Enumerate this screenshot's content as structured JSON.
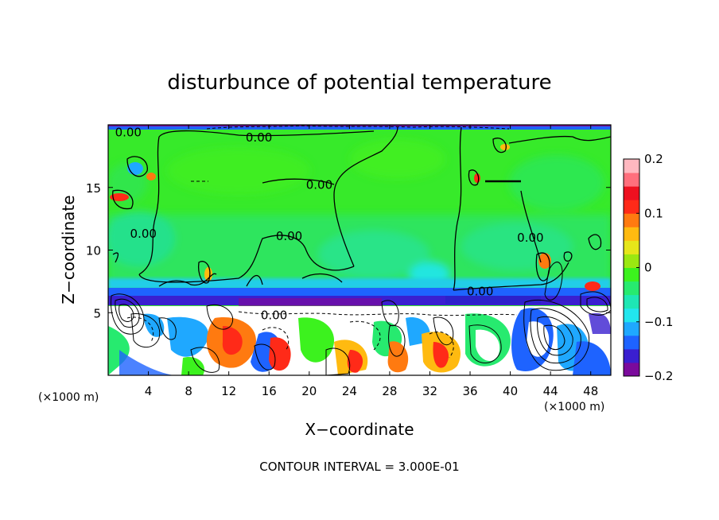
{
  "chart_data": {
    "type": "heatmap",
    "title": "disturbunce of potential temperature",
    "xlabel": "X−coordinate",
    "ylabel": "Z−coordinate",
    "x_unit": "(×1000 m)",
    "x_unit_right": "(×1000 m)",
    "xlim": [
      0,
      50
    ],
    "ylim": [
      0,
      20
    ],
    "x_ticks": [
      4,
      8,
      12,
      16,
      20,
      24,
      28,
      32,
      36,
      40,
      44,
      48
    ],
    "x_tick_labels": [
      "4",
      "8",
      "12",
      "16",
      "20",
      "24",
      "28",
      "32",
      "36",
      "40",
      "44",
      "48"
    ],
    "y_ticks": [
      5,
      10,
      15
    ],
    "y_tick_labels": [
      "5",
      "10",
      "15"
    ],
    "colorbar": {
      "min": -0.2,
      "max": 0.2,
      "tick_values": [
        0.2,
        0.1,
        0,
        -0.1,
        -0.2
      ],
      "tick_labels": [
        "0.2",
        "0.1",
        "0",
        "−0.1",
        "−0.2"
      ],
      "colors": [
        "#7b0a9c",
        "#3a1fd0",
        "#1e63ff",
        "#1fa8ff",
        "#22e6ee",
        "#1ee7b4",
        "#27ea6f",
        "#3cf21e",
        "#9be811",
        "#e6e61a",
        "#ffba10",
        "#ff7a10",
        "#ff2a18",
        "#ee1020",
        "#ff6f7d",
        "#ffb8c0"
      ]
    },
    "contour_labels": [
      {
        "text": "0.00",
        "x": 2.0,
        "z": 19.4
      },
      {
        "text": "0.00",
        "x": 15.0,
        "z": 19.0
      },
      {
        "text": "0.00",
        "x": 21.0,
        "z": 15.2
      },
      {
        "text": "0.00",
        "x": 18.0,
        "z": 11.1
      },
      {
        "text": "0.00",
        "x": 3.5,
        "z": 11.3
      },
      {
        "text": "0.00",
        "x": 37.0,
        "z": 6.7
      },
      {
        "text": "0.00",
        "x": 16.5,
        "z": 4.8
      },
      {
        "text": "0.00",
        "x": 42.0,
        "z": 11.0
      }
    ],
    "footer": "CONTOUR INTERVAL = 3.000E-01"
  }
}
